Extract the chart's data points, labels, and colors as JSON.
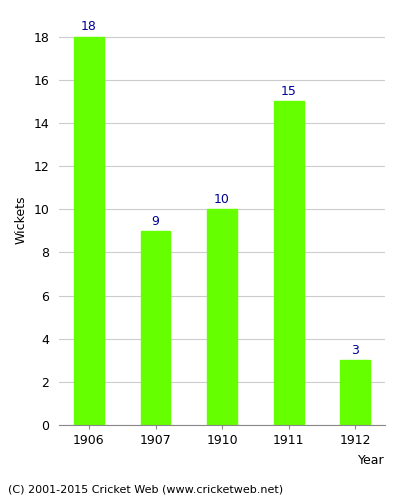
{
  "categories": [
    "1906",
    "1907",
    "1910",
    "1911",
    "1912"
  ],
  "values": [
    18,
    9,
    10,
    15,
    3
  ],
  "bar_color": "#66ff00",
  "bar_edgecolor": "#66ff00",
  "xlabel": "Year",
  "ylabel": "Wickets",
  "ylim": [
    0,
    19
  ],
  "yticks": [
    0,
    2,
    4,
    6,
    8,
    10,
    12,
    14,
    16,
    18
  ],
  "label_color": "#000099",
  "label_fontsize": 9,
  "axis_label_fontsize": 9,
  "tick_fontsize": 9,
  "footer": "(C) 2001-2015 Cricket Web (www.cricketweb.net)",
  "footer_fontsize": 8,
  "background_color": "#ffffff",
  "grid_color": "#cccccc",
  "bar_width": 0.45
}
